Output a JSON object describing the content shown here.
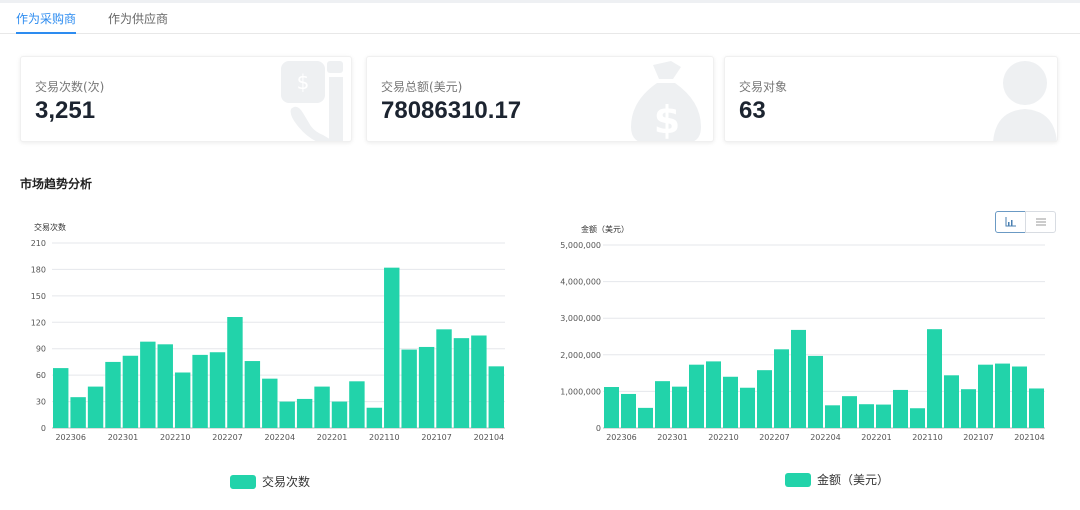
{
  "tabs": {
    "buyer": "作为采购商",
    "supplier": "作为供应商"
  },
  "cards": [
    {
      "label": "交易次数(次)",
      "value": "3,251",
      "icon": "phone-dollar-icon"
    },
    {
      "label": "交易总额(美元)",
      "value": "78086310.17",
      "icon": "money-bag-icon"
    },
    {
      "label": "交易对象",
      "value": "63",
      "icon": "user-icon"
    }
  ],
  "section_title": "市场趋势分析",
  "colors": {
    "bar": "#22d3aa",
    "grid": "#e5e7eb",
    "tab_active": "#2d8cf0",
    "axis_text": "#555555"
  },
  "chart_data": [
    {
      "type": "bar",
      "ylabel": "交易次数",
      "ylim": [
        0,
        210
      ],
      "yticks": [
        "0",
        "30",
        "60",
        "90",
        "120",
        "150",
        "180",
        "210"
      ],
      "xtick_labels": [
        "202306",
        "202301",
        "202210",
        "202207",
        "202204",
        "202201",
        "202110",
        "202107",
        "202104"
      ],
      "legend": "交易次数",
      "series": [
        {
          "name": "交易次数",
          "values": [
            68,
            35,
            47,
            75,
            82,
            98,
            95,
            63,
            83,
            86,
            126,
            76,
            56,
            30,
            33,
            47,
            30,
            53,
            23,
            182,
            89,
            92,
            112,
            102,
            105,
            70
          ]
        }
      ]
    },
    {
      "type": "bar",
      "ylabel": "金额（美元）",
      "ylim": [
        0,
        5000000
      ],
      "yticks": [
        "0",
        "1,000,000",
        "2,000,000",
        "3,000,000",
        "4,000,000",
        "5,000,000"
      ],
      "xtick_labels": [
        "202306",
        "202301",
        "202210",
        "202207",
        "202204",
        "202201",
        "202110",
        "202107",
        "202104"
      ],
      "legend": "金额（美元）",
      "series": [
        {
          "name": "金额（美元）",
          "values": [
            1120000,
            930000,
            550000,
            1280000,
            1130000,
            1730000,
            1820000,
            1400000,
            1100000,
            1580000,
            2150000,
            2680000,
            1970000,
            620000,
            870000,
            650000,
            640000,
            1040000,
            540000,
            2700000,
            1440000,
            1060000,
            1730000,
            1760000,
            1680000,
            1080000
          ]
        }
      ]
    }
  ],
  "view_toggle": {
    "chart_icon": "bar-chart-icon",
    "list_icon": "list-icon"
  }
}
